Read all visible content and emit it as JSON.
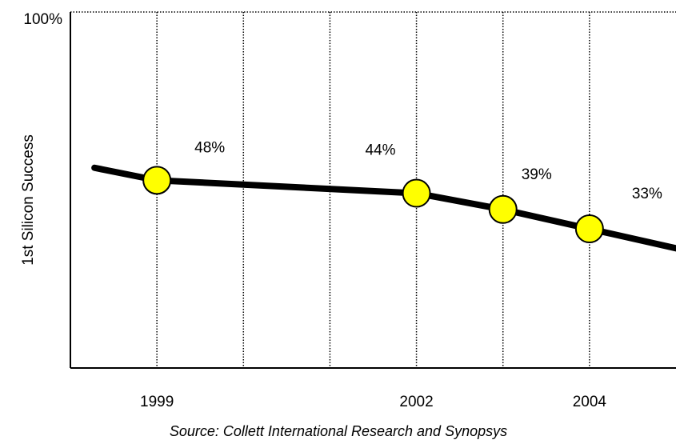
{
  "chart_data": {
    "type": "line",
    "ylabel": "1st  Silicon Success",
    "source": "Source: Collett International Research and Synopsys",
    "series": [
      {
        "color": "#ffff00",
        "x": [
          1999,
          2002,
          2003,
          2004
        ],
        "values": [
          48,
          44,
          39,
          33
        ],
        "value_labels": [
          "48%",
          "44%",
          "39%",
          "33%"
        ]
      }
    ],
    "xlim": [
      1998,
      2005
    ],
    "xticks": [
      1999,
      {
        "value": 2000,
        "label": null
      },
      {
        "value": 2001,
        "label": null
      },
      2002,
      {
        "value": 2003,
        "label": null
      },
      2004
    ],
    "ylim": [
      -10,
      100
    ],
    "yticks": [
      {
        "value": 100,
        "label": "100%"
      }
    ],
    "grid": true
  }
}
